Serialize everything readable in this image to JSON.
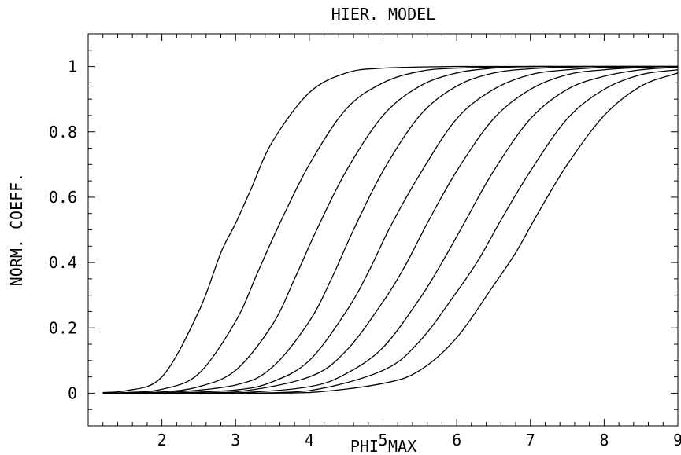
{
  "chart_data": {
    "type": "line",
    "title": "HIER. MODEL",
    "xlabel": "PHI MAX",
    "ylabel": "NORM. COEFF.",
    "xlim": [
      1.0,
      9.0
    ],
    "ylim": [
      -0.1,
      1.1
    ],
    "xticks": [
      2,
      3,
      4,
      5,
      6,
      7,
      8,
      9
    ],
    "xtick_labels": [
      "2",
      "3",
      "4",
      "5",
      "6",
      "7",
      "8",
      "9"
    ],
    "yticks": [
      0,
      0.2,
      0.4,
      0.6,
      0.8,
      1
    ],
    "ytick_labels": [
      "0",
      "0.2",
      "0.4",
      "0.6",
      "0.8",
      "1"
    ],
    "grid": false,
    "legend": "none",
    "line_color": "#000000",
    "series": [
      {
        "x": [
          1.2,
          1.5,
          2.0,
          2.5,
          2.8,
          3.0,
          3.2,
          3.5,
          4.0,
          4.5,
          5.0,
          6.0,
          7.0,
          8.0,
          9.0
        ],
        "y": [
          0.002,
          0.007,
          0.05,
          0.25,
          0.43,
          0.52,
          0.62,
          0.77,
          0.92,
          0.98,
          0.995,
          1.0,
          1.0,
          1.0,
          1.0
        ]
      },
      {
        "x": [
          1.2,
          1.5,
          2.0,
          2.5,
          3.0,
          3.3,
          3.6,
          4.0,
          4.5,
          5.0,
          5.5,
          6.0,
          7.0,
          8.0,
          9.0
        ],
        "y": [
          0.0,
          0.002,
          0.012,
          0.06,
          0.22,
          0.37,
          0.52,
          0.7,
          0.87,
          0.95,
          0.985,
          0.995,
          1.0,
          1.0,
          1.0
        ]
      },
      {
        "x": [
          1.2,
          2.0,
          2.5,
          3.0,
          3.5,
          3.8,
          4.1,
          4.5,
          5.0,
          5.5,
          6.0,
          6.5,
          7.0,
          8.0,
          9.0
        ],
        "y": [
          0.0,
          0.004,
          0.02,
          0.07,
          0.21,
          0.35,
          0.5,
          0.68,
          0.85,
          0.94,
          0.98,
          0.995,
          1.0,
          1.0,
          1.0
        ]
      },
      {
        "x": [
          1.2,
          2.0,
          3.0,
          3.5,
          4.0,
          4.3,
          4.6,
          5.0,
          5.5,
          6.0,
          6.5,
          7.0,
          7.5,
          8.0,
          9.0
        ],
        "y": [
          0.0,
          0.001,
          0.025,
          0.08,
          0.22,
          0.35,
          0.5,
          0.68,
          0.85,
          0.94,
          0.98,
          0.993,
          0.998,
          1.0,
          1.0
        ]
      },
      {
        "x": [
          1.2,
          2.0,
          3.0,
          3.5,
          4.0,
          4.5,
          4.8,
          5.1,
          5.5,
          6.0,
          6.5,
          7.0,
          7.5,
          8.0,
          9.0
        ],
        "y": [
          0.0,
          0.0,
          0.01,
          0.035,
          0.1,
          0.25,
          0.37,
          0.51,
          0.67,
          0.84,
          0.93,
          0.975,
          0.99,
          0.997,
          1.0
        ]
      },
      {
        "x": [
          1.2,
          2.0,
          3.0,
          4.0,
          4.5,
          5.0,
          5.3,
          5.6,
          6.0,
          6.5,
          7.0,
          7.5,
          8.0,
          8.5,
          9.0
        ],
        "y": [
          0.0,
          0.0,
          0.004,
          0.05,
          0.13,
          0.28,
          0.39,
          0.52,
          0.68,
          0.84,
          0.93,
          0.975,
          0.99,
          0.997,
          1.0
        ]
      },
      {
        "x": [
          1.2,
          2.0,
          3.0,
          4.0,
          4.5,
          5.0,
          5.5,
          5.8,
          6.1,
          6.5,
          7.0,
          7.5,
          8.0,
          8.5,
          9.0
        ],
        "y": [
          0.0,
          0.0,
          0.001,
          0.02,
          0.06,
          0.14,
          0.29,
          0.4,
          0.52,
          0.68,
          0.84,
          0.93,
          0.97,
          0.99,
          0.998
        ]
      },
      {
        "x": [
          1.2,
          2.0,
          3.0,
          4.0,
          5.0,
          5.5,
          6.0,
          6.3,
          6.6,
          7.0,
          7.5,
          8.0,
          8.5,
          9.0
        ],
        "y": [
          0.0,
          0.0,
          0.0,
          0.008,
          0.07,
          0.16,
          0.31,
          0.41,
          0.53,
          0.68,
          0.84,
          0.93,
          0.975,
          0.99
        ]
      },
      {
        "x": [
          1.2,
          2.0,
          3.0,
          4.0,
          5.0,
          5.5,
          6.0,
          6.5,
          6.8,
          7.1,
          7.5,
          8.0,
          8.5,
          9.0
        ],
        "y": [
          0.0,
          0.0,
          0.0,
          0.002,
          0.03,
          0.07,
          0.17,
          0.33,
          0.43,
          0.55,
          0.7,
          0.85,
          0.94,
          0.98
        ]
      }
    ]
  }
}
